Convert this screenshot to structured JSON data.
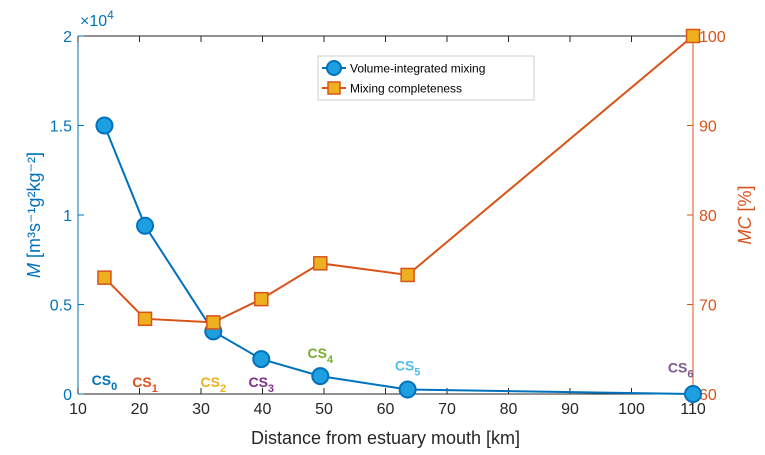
{
  "chart_data": {
    "type": "line",
    "xlabel": "Distance from estuary mouth [km]",
    "xlim": [
      10,
      110
    ],
    "xticks": [
      10,
      20,
      30,
      40,
      50,
      60,
      70,
      80,
      90,
      100,
      110
    ],
    "y_left": {
      "label_main": "M",
      "label_units": "[m³s⁻¹g²kg⁻²]",
      "lim": [
        0,
        20000
      ],
      "ticks": [
        0,
        5000,
        10000,
        15000,
        20000
      ],
      "tick_labels": [
        "0",
        "0.5",
        "1",
        "1.5",
        "2"
      ],
      "exponent_label": "×10",
      "exponent_power": "4",
      "color": "#0072bd"
    },
    "y_right": {
      "label_main": "MC",
      "label_units": "[%]",
      "lim": [
        60,
        100
      ],
      "ticks": [
        60,
        70,
        80,
        90,
        100
      ],
      "tick_labels": [
        "60",
        "70",
        "80",
        "90",
        "100"
      ],
      "color": "#d95319"
    },
    "series": [
      {
        "name": "Volume-integrated mixing",
        "axis": "left",
        "marker": "circle",
        "line_color": "#0072bd",
        "marker_color": "#1e9fe0",
        "x": [
          14.3,
          20.9,
          32.0,
          39.8,
          49.4,
          63.6,
          110.0
        ],
        "y": [
          15000,
          9400,
          3500,
          1950,
          1000,
          250,
          0
        ]
      },
      {
        "name": "Mixing completeness",
        "axis": "right",
        "marker": "square",
        "line_color": "#d95319",
        "marker_color": "#edb120",
        "x": [
          14.3,
          20.9,
          32.0,
          39.8,
          49.4,
          63.6,
          110.0
        ],
        "y": [
          73.0,
          68.4,
          68.0,
          70.6,
          74.6,
          73.3,
          100.0
        ]
      }
    ],
    "cross_section_labels": [
      {
        "base": "CS",
        "sub": "0",
        "x": 14.3,
        "y_left": 500,
        "color": "#0072bd"
      },
      {
        "base": "CS",
        "sub": "1",
        "x": 20.9,
        "y_left": 400,
        "color": "#d95319"
      },
      {
        "base": "CS",
        "sub": "2",
        "x": 32.0,
        "y_left": 400,
        "color": "#edb120"
      },
      {
        "base": "CS",
        "sub": "3",
        "x": 39.8,
        "y_left": 400,
        "color": "#7e2f8e"
      },
      {
        "base": "CS",
        "sub": "4",
        "x": 49.4,
        "y_left": 2000,
        "color": "#77ac30"
      },
      {
        "base": "CS",
        "sub": "5",
        "x": 63.6,
        "y_left": 1300,
        "color": "#4dbeee"
      },
      {
        "base": "CS",
        "sub": "6",
        "x": 108.0,
        "y_left": 1200,
        "color": "#7e5a8a"
      }
    ],
    "legend": {
      "position": "top-center",
      "entries": [
        "Volume-integrated mixing",
        "Mixing completeness"
      ]
    },
    "grid": false
  }
}
